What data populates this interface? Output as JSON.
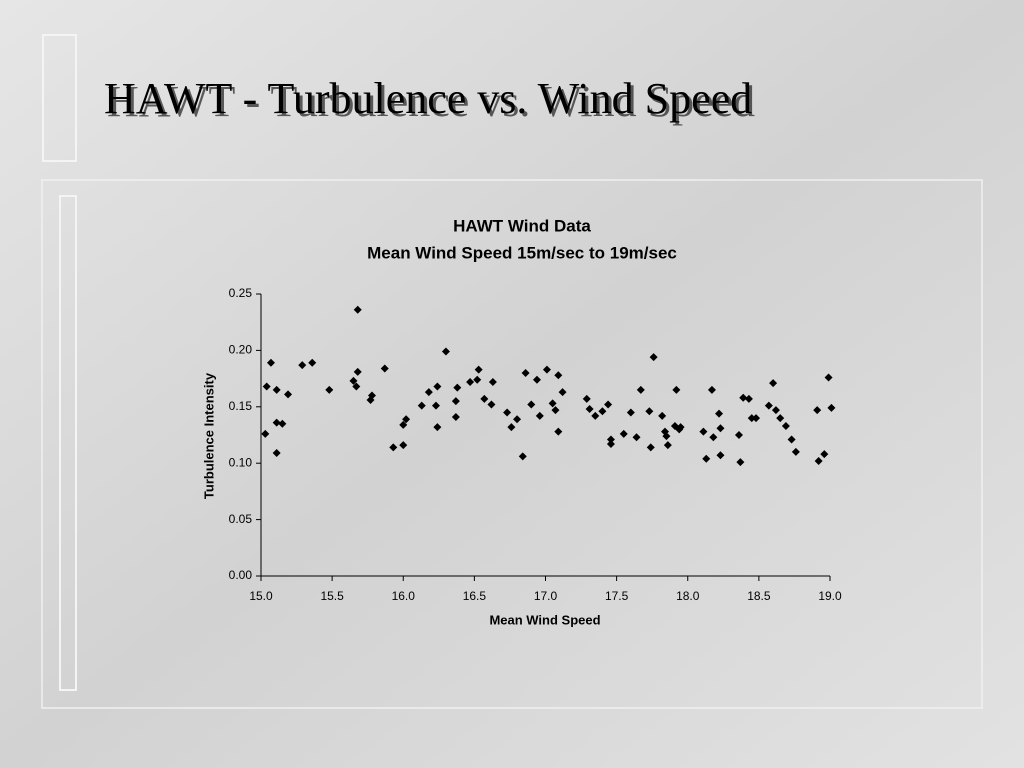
{
  "slide_title": "HAWT - Turbulence vs. Wind Speed",
  "chart_data": {
    "type": "scatter",
    "title": "HAWT Wind Data",
    "subtitle": "Mean Wind Speed 15m/sec to 19m/sec",
    "x_label": "Mean Wind Speed",
    "y_label": "Turbulence Intensity",
    "color": "#000000",
    "grid": false,
    "xlim": [
      15,
      19
    ],
    "xticks": [
      {
        "value": 15,
        "label": "15.0"
      },
      15.5,
      {
        "value": 16,
        "label": "16.0"
      },
      16.5,
      {
        "value": 17,
        "label": "17.0"
      },
      17.5,
      {
        "value": 18,
        "label": "18.0"
      },
      18.5,
      {
        "value": 19,
        "label": "19.0"
      }
    ],
    "ylim": [
      0,
      0.25
    ],
    "yticks": [
      {
        "value": 0,
        "label": "0.00"
      },
      0.05,
      {
        "value": 0.1,
        "label": "0.10"
      },
      0.15,
      {
        "value": 0.2,
        "label": "0.20"
      },
      0.25
    ],
    "x": [
      15.03,
      15.04,
      15.07,
      15.11,
      15.11,
      15.11,
      15.15,
      15.19,
      15.29,
      15.36,
      15.48,
      15.65,
      15.67,
      15.68,
      15.68,
      15.77,
      15.78,
      15.87,
      15.93,
      16.0,
      16.0,
      16.02,
      16.13,
      16.18,
      16.23,
      16.24,
      16.24,
      16.3,
      16.37,
      16.37,
      16.38,
      16.47,
      16.52,
      16.53,
      16.57,
      16.62,
      16.63,
      16.73,
      16.76,
      16.8,
      16.84,
      16.86,
      16.9,
      16.94,
      16.96,
      17.01,
      17.05,
      17.07,
      17.09,
      17.09,
      17.12,
      17.29,
      17.31,
      17.35,
      17.4,
      17.44,
      17.46,
      17.46,
      17.55,
      17.6,
      17.64,
      17.67,
      17.73,
      17.74,
      17.76,
      17.82,
      17.84,
      17.85,
      17.86,
      17.91,
      17.92,
      17.94,
      17.95,
      18.11,
      18.13,
      18.17,
      18.18,
      18.22,
      18.23,
      18.23,
      18.36,
      18.37,
      18.39,
      18.43,
      18.45,
      18.48,
      18.57,
      18.6,
      18.62,
      18.65,
      18.69,
      18.73,
      18.76,
      18.91,
      18.92,
      18.96,
      18.99,
      19.01
    ],
    "values": [
      0.126,
      0.168,
      0.189,
      0.165,
      0.136,
      0.109,
      0.135,
      0.161,
      0.187,
      0.189,
      0.165,
      0.173,
      0.168,
      0.236,
      0.181,
      0.156,
      0.16,
      0.184,
      0.114,
      0.116,
      0.134,
      0.139,
      0.151,
      0.163,
      0.151,
      0.132,
      0.168,
      0.199,
      0.155,
      0.141,
      0.167,
      0.172,
      0.174,
      0.183,
      0.157,
      0.152,
      0.172,
      0.145,
      0.132,
      0.139,
      0.106,
      0.18,
      0.152,
      0.174,
      0.142,
      0.183,
      0.153,
      0.147,
      0.178,
      0.128,
      0.163,
      0.157,
      0.148,
      0.142,
      0.146,
      0.152,
      0.121,
      0.117,
      0.126,
      0.145,
      0.123,
      0.165,
      0.146,
      0.114,
      0.194,
      0.142,
      0.128,
      0.124,
      0.116,
      0.133,
      0.165,
      0.13,
      0.132,
      0.128,
      0.104,
      0.165,
      0.123,
      0.144,
      0.131,
      0.107,
      0.125,
      0.101,
      0.158,
      0.157,
      0.14,
      0.14,
      0.151,
      0.171,
      0.147,
      0.14,
      0.133,
      0.121,
      0.11,
      0.147,
      0.102,
      0.108,
      0.176,
      0.149
    ]
  }
}
